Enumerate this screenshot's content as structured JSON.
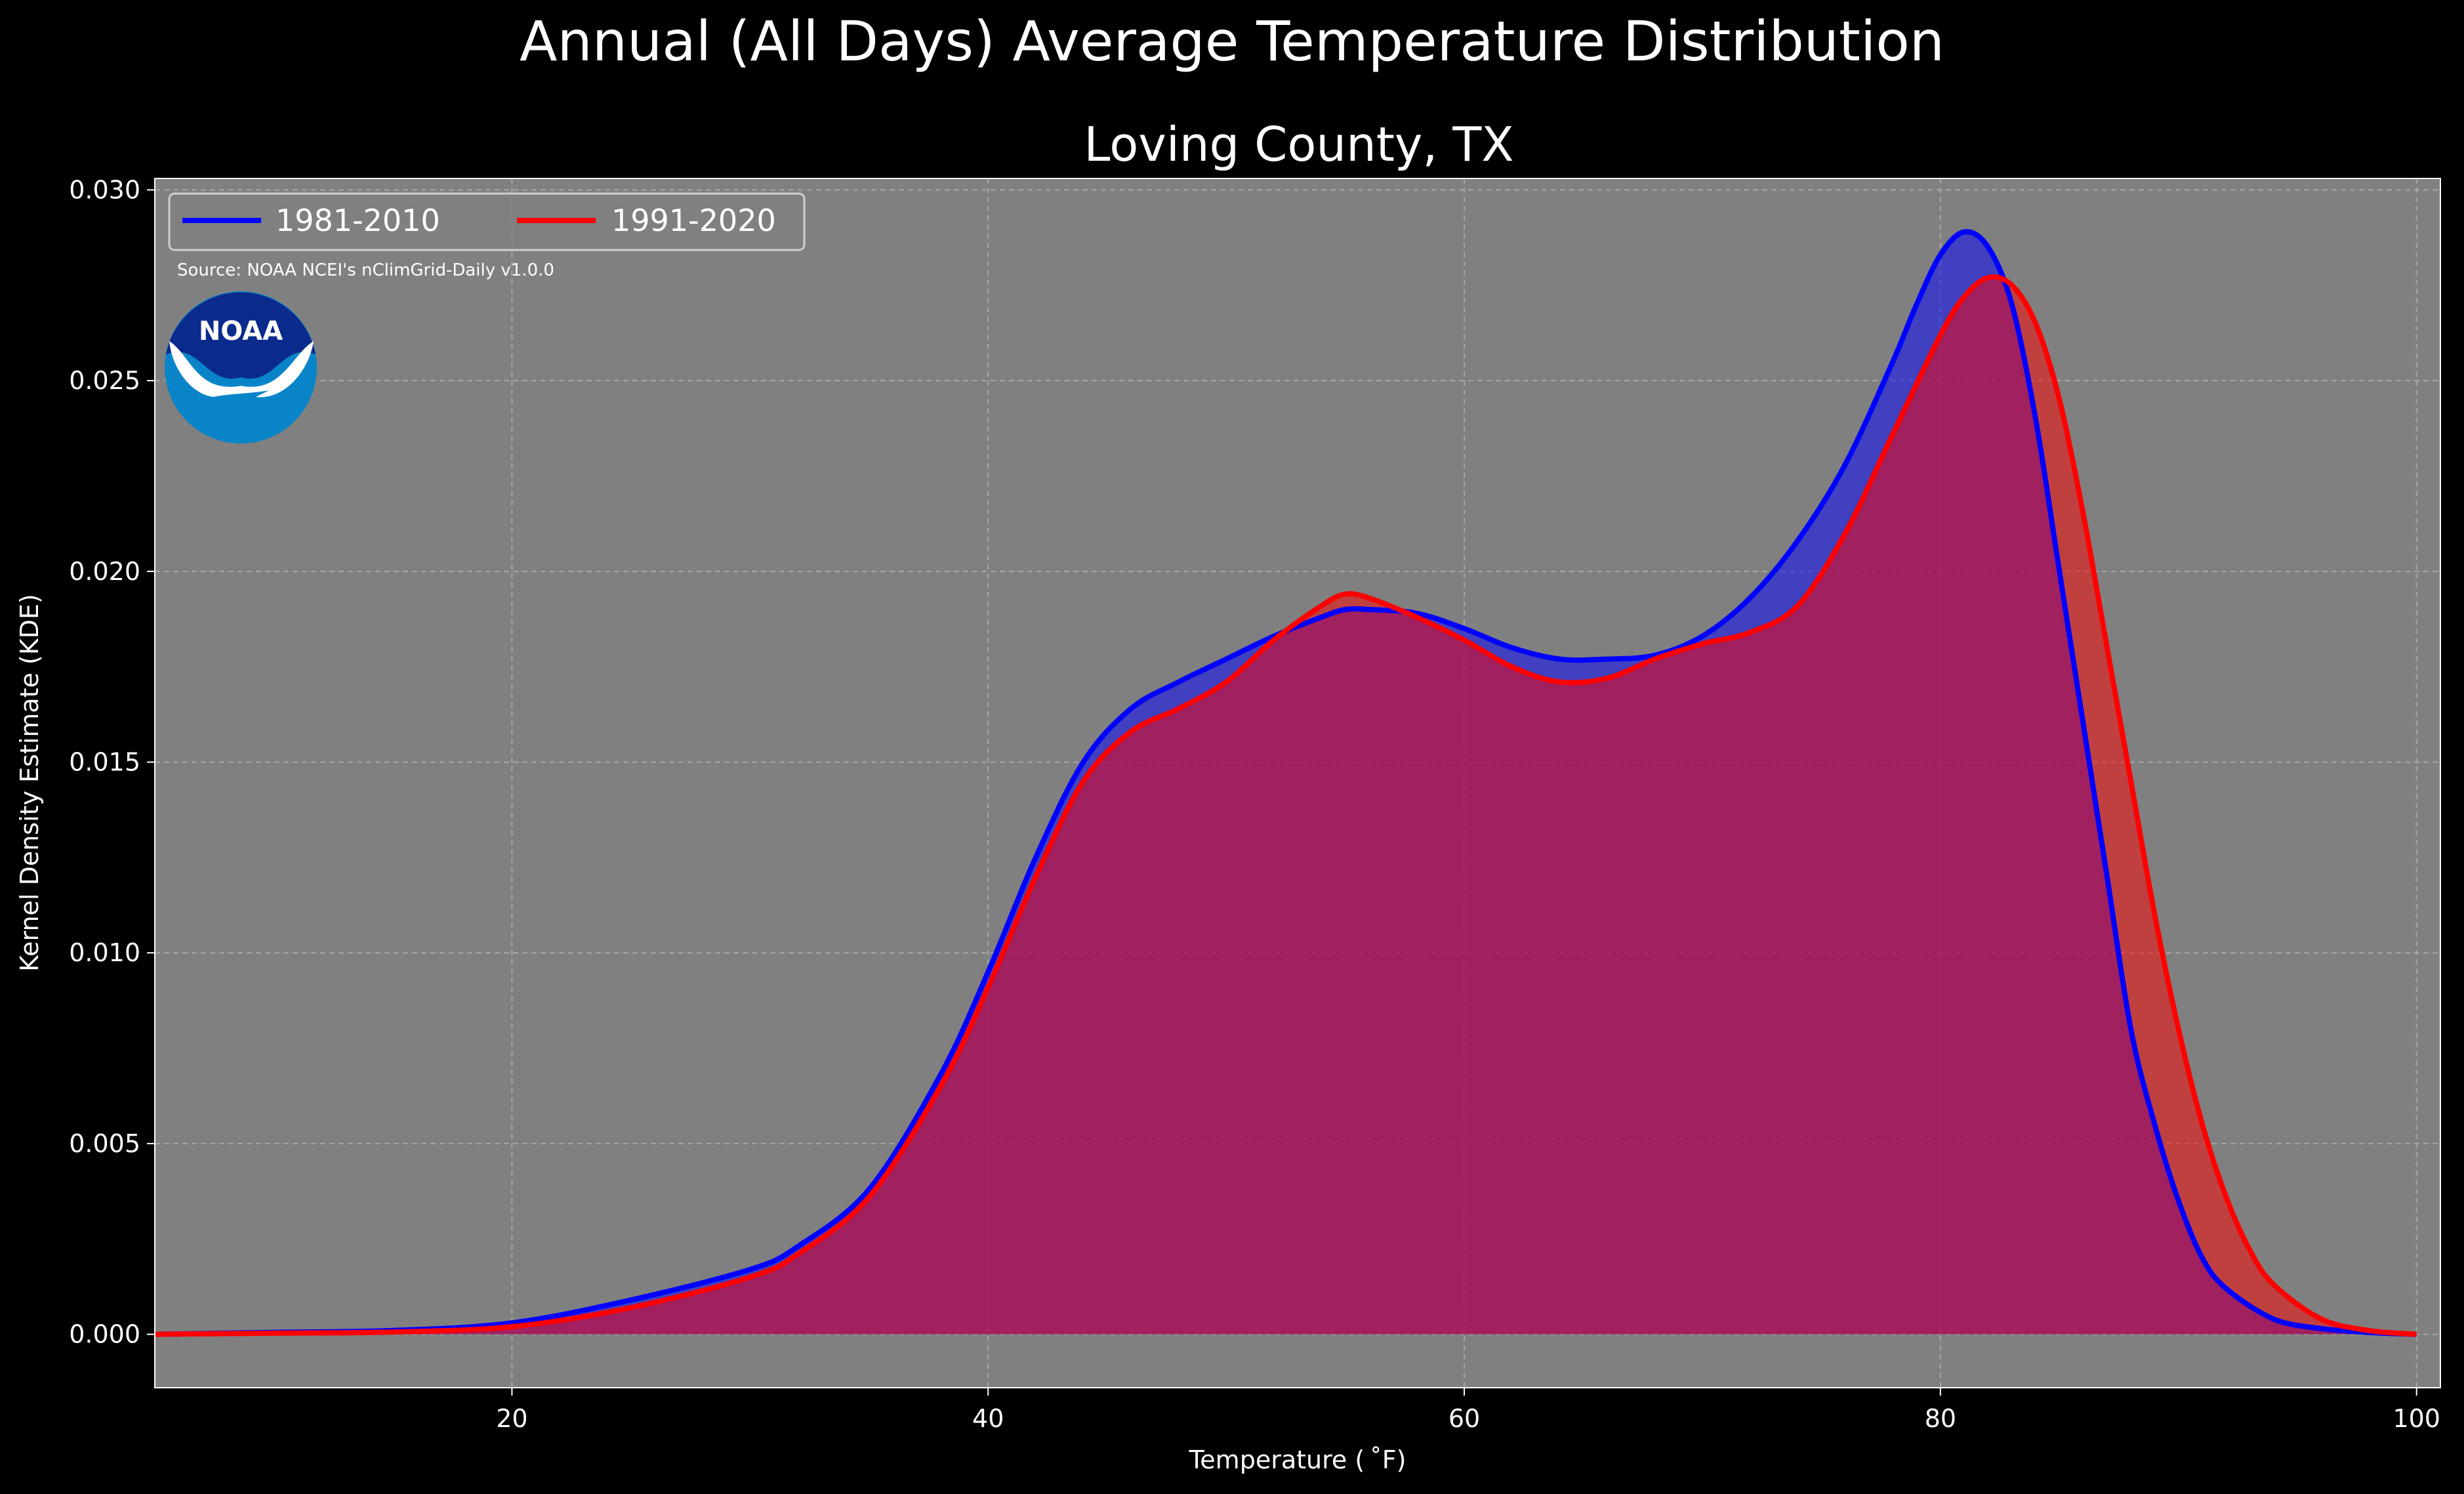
{
  "colors": {
    "figure_background": "#000000",
    "plot_background": "#808080",
    "series_1981_2010": "#0000ff",
    "series_1991_2020": "#ff0000",
    "noaa_dark_blue": "#0a2b8c",
    "noaa_light_blue": "#0a84c8"
  },
  "logo": {
    "icon": "noaa-logo-icon",
    "text": "NOAA"
  },
  "source_note": "Source: NOAA NCEI's nClimGrid-Daily v1.0.0",
  "chart_data": {
    "type": "area",
    "title": "Annual (All Days) Average Temperature Distribution",
    "subtitle": "Loving County, TX",
    "xlabel": "Temperature ($^\\circ$F)",
    "xlabel_display": "Temperature ( ˚F)",
    "ylabel": "Kernel Density Estimate (KDE)",
    "xlim": [
      5,
      101
    ],
    "ylim": [
      -0.0014,
      0.0303
    ],
    "xticks": [
      20,
      40,
      60,
      80,
      100
    ],
    "xtick_labels": [
      "20",
      "40",
      "60",
      "80",
      "100"
    ],
    "yticks": [
      0.0,
      0.005,
      0.01,
      0.015,
      0.02,
      0.025,
      0.03
    ],
    "ytick_labels": [
      "0.000",
      "0.005",
      "0.010",
      "0.015",
      "0.020",
      "0.025",
      "0.030"
    ],
    "grid": true,
    "legend": {
      "placement": "top-left",
      "columns": 2
    },
    "series": [
      {
        "name": "1981-2010",
        "color": "#0000ff",
        "x": [
          5,
          10,
          15,
          20,
          25,
          30,
          32,
          35,
          38,
          40,
          42,
          44,
          46,
          48,
          50,
          52,
          54,
          55,
          56,
          58,
          60,
          62,
          64,
          66,
          68,
          70,
          72,
          74,
          76,
          78,
          79,
          80,
          81,
          82,
          83,
          84,
          85,
          86,
          87,
          88,
          89,
          90,
          91,
          92,
          94,
          96,
          98,
          100
        ],
        "y": [
          0.0,
          5e-05,
          0.0001,
          0.0003,
          0.0009,
          0.0017,
          0.0023,
          0.0038,
          0.0068,
          0.0095,
          0.0125,
          0.015,
          0.0164,
          0.0171,
          0.0177,
          0.0183,
          0.0188,
          0.019,
          0.019,
          0.0189,
          0.0185,
          0.018,
          0.0177,
          0.0177,
          0.0178,
          0.0183,
          0.0193,
          0.0208,
          0.0228,
          0.0255,
          0.027,
          0.0283,
          0.0289,
          0.0285,
          0.027,
          0.024,
          0.02,
          0.016,
          0.012,
          0.008,
          0.0055,
          0.0035,
          0.002,
          0.0012,
          0.0004,
          0.00015,
          5e-05,
          0.0
        ]
      },
      {
        "name": "1991-2020",
        "color": "#ff0000",
        "x": [
          5,
          10,
          15,
          20,
          25,
          30,
          32,
          35,
          38,
          40,
          42,
          44,
          46,
          48,
          50,
          52,
          54,
          55,
          56,
          58,
          60,
          62,
          64,
          66,
          68,
          70,
          72,
          74,
          76,
          78,
          80,
          81,
          82,
          83,
          84,
          85,
          86,
          87,
          88,
          89,
          90,
          91,
          92,
          93,
          94,
          96,
          98,
          100
        ],
        "y": [
          0.0,
          3e-05,
          6e-05,
          0.0002,
          0.0007,
          0.0015,
          0.0021,
          0.0036,
          0.0065,
          0.0091,
          0.012,
          0.0145,
          0.0158,
          0.0164,
          0.0171,
          0.0182,
          0.0191,
          0.0194,
          0.0193,
          0.0188,
          0.0182,
          0.0175,
          0.0171,
          0.0172,
          0.0177,
          0.0181,
          0.0184,
          0.0191,
          0.021,
          0.0236,
          0.0262,
          0.0272,
          0.0277,
          0.0275,
          0.0265,
          0.0245,
          0.0215,
          0.018,
          0.0145,
          0.011,
          0.008,
          0.0055,
          0.0036,
          0.0022,
          0.0013,
          0.0004,
          0.0001,
          0.0
        ]
      }
    ]
  }
}
